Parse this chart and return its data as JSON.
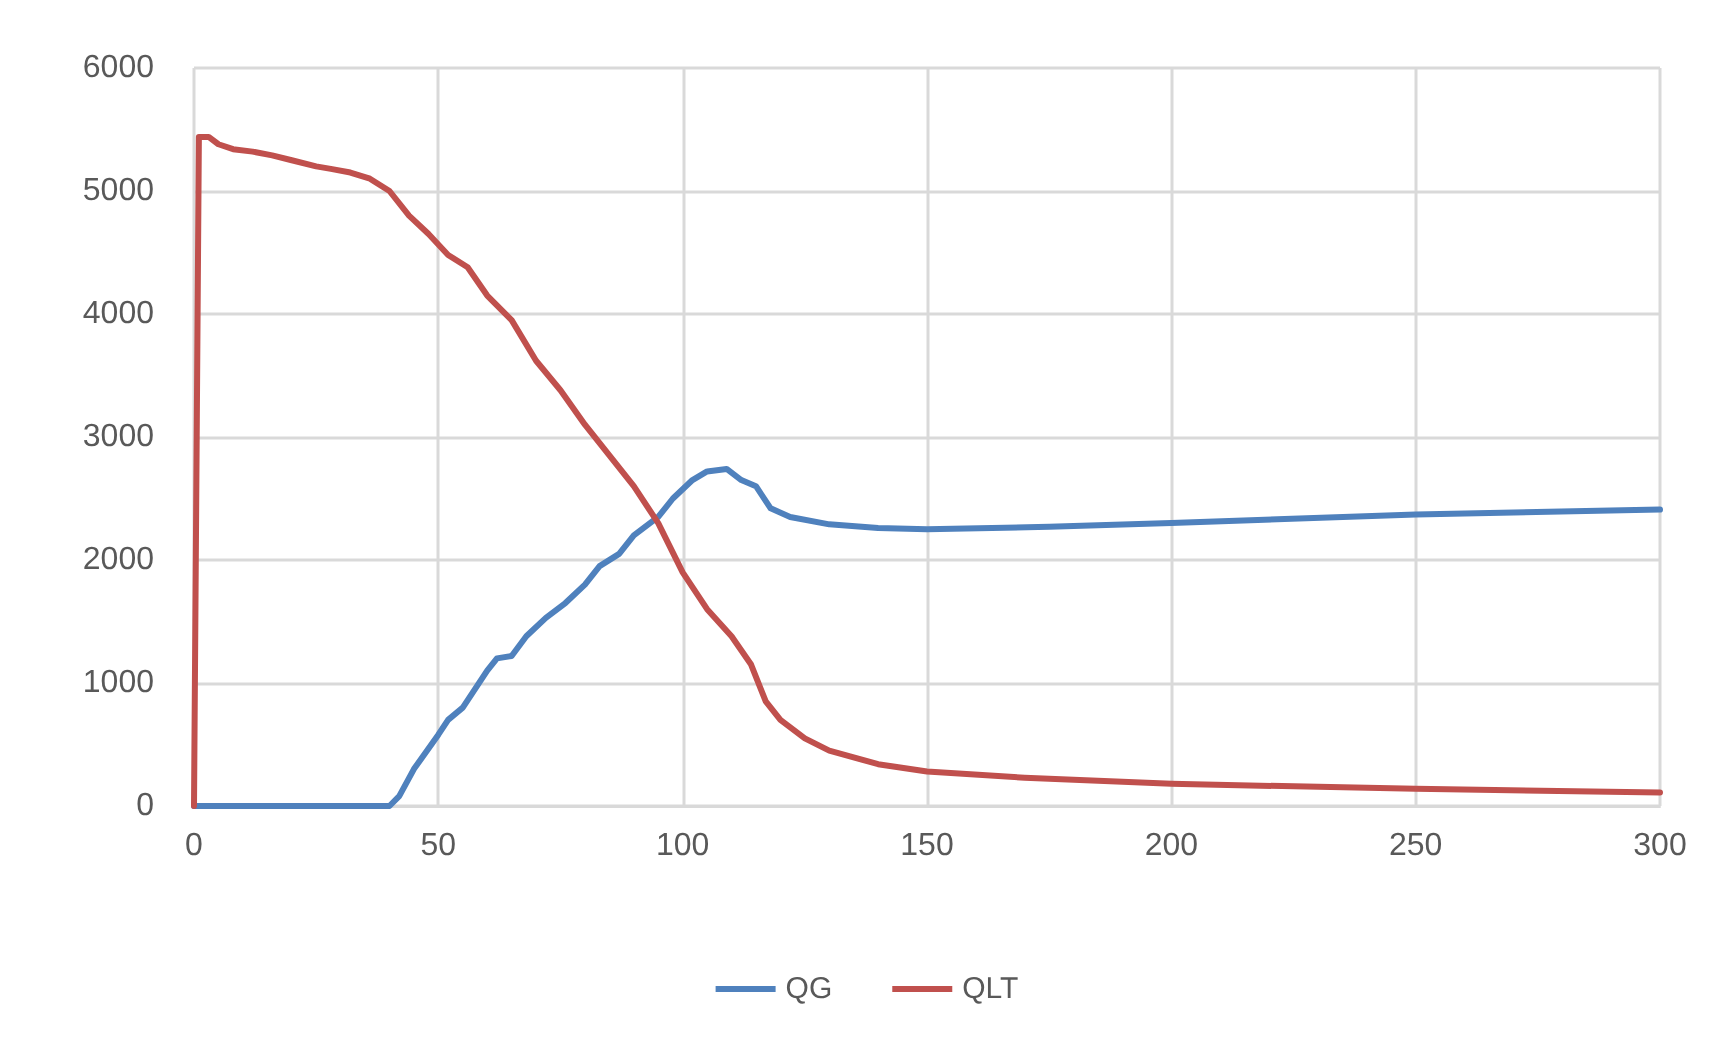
{
  "chart_data": {
    "type": "line",
    "xlim": [
      0,
      300
    ],
    "xticks": [
      0,
      50,
      100,
      150,
      200,
      250,
      300
    ],
    "ylim": [
      0,
      6000
    ],
    "yticks": [
      0,
      1000,
      2000,
      3000,
      4000,
      5000,
      6000
    ],
    "grid": true,
    "legend": "bottom",
    "marker": "none",
    "line_style": "solid",
    "series": [
      {
        "name": "QG",
        "color": "#4f81bd",
        "x": [
          0,
          40,
          42,
          45,
          50,
          52,
          55,
          60,
          62,
          65,
          68,
          72,
          76,
          80,
          83,
          87,
          90,
          95,
          98,
          102,
          105,
          109,
          112,
          115,
          118,
          122,
          130,
          140,
          150,
          175,
          200,
          250,
          300
        ],
        "values": [
          0,
          0,
          80,
          300,
          580,
          700,
          800,
          1100,
          1200,
          1220,
          1380,
          1530,
          1650,
          1800,
          1950,
          2050,
          2200,
          2350,
          2500,
          2650,
          2720,
          2740,
          2650,
          2600,
          2420,
          2350,
          2290,
          2260,
          2250,
          2270,
          2300,
          2370,
          2410
        ]
      },
      {
        "name": "QLT",
        "color": "#c0504d",
        "x": [
          0,
          1,
          3,
          5,
          8,
          12,
          16,
          20,
          25,
          28,
          32,
          36,
          40,
          44,
          48,
          52,
          56,
          60,
          65,
          70,
          75,
          80,
          85,
          90,
          95,
          100,
          105,
          110,
          114,
          117,
          120,
          125,
          130,
          140,
          150,
          170,
          200,
          250,
          300
        ],
        "values": [
          0,
          5440,
          5440,
          5380,
          5340,
          5320,
          5290,
          5250,
          5200,
          5180,
          5150,
          5100,
          5000,
          4800,
          4650,
          4480,
          4380,
          4150,
          3950,
          3620,
          3380,
          3100,
          2850,
          2600,
          2300,
          1900,
          1600,
          1380,
          1150,
          850,
          700,
          550,
          450,
          340,
          280,
          230,
          180,
          140,
          110
        ]
      }
    ]
  }
}
